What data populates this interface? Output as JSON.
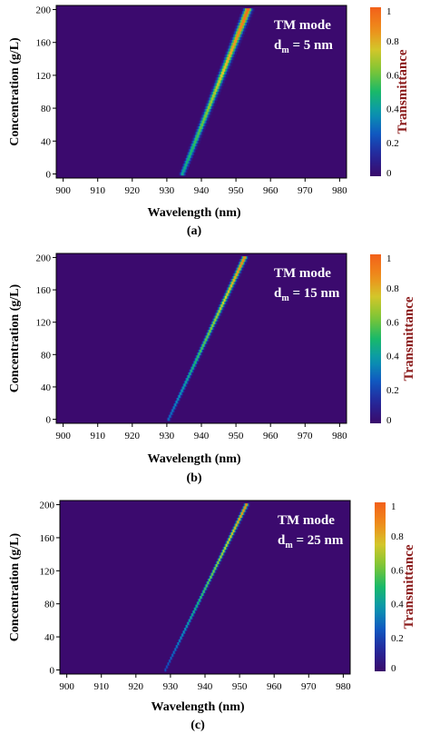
{
  "chart_data": [
    {
      "type": "heatmap",
      "panel_label": "(a)",
      "xlabel": "Wavelength (nm)",
      "ylabel": "Concentration (g/L)",
      "xlim": [
        898,
        982
      ],
      "ylim": [
        -5,
        205
      ],
      "xticks": [
        900,
        910,
        920,
        930,
        940,
        950,
        960,
        970,
        980
      ],
      "yticks": [
        0,
        40,
        80,
        120,
        160,
        200
      ],
      "annotation": {
        "line1": "TM mode",
        "line2_main": "d",
        "line2_sub": "m",
        "line2_rest": " = 5 nm"
      },
      "colorbar": {
        "label": "Transmittance",
        "ticks": [
          0,
          0.2,
          0.4,
          0.6,
          0.8,
          1
        ],
        "range": [
          0,
          1
        ]
      },
      "resonance": {
        "concentration": [
          0,
          200
        ],
        "wavelength": [
          934.5,
          953.5
        ],
        "width_nm": [
          0.9,
          1.3
        ],
        "peak": [
          0.45,
          1.0
        ]
      }
    },
    {
      "type": "heatmap",
      "panel_label": "(b)",
      "xlabel": "Wavelength (nm)",
      "ylabel": "Concentration (g/L)",
      "xlim": [
        898,
        982
      ],
      "ylim": [
        -5,
        205
      ],
      "xticks": [
        900,
        910,
        920,
        930,
        940,
        950,
        960,
        970,
        980
      ],
      "yticks": [
        0,
        40,
        80,
        120,
        160,
        200
      ],
      "annotation": {
        "line1": "TM mode",
        "line2_main": "d",
        "line2_sub": "m",
        "line2_rest": " = 15 nm"
      },
      "colorbar": {
        "label": "Transmittance",
        "ticks": [
          0,
          0.2,
          0.4,
          0.6,
          0.8,
          1
        ],
        "range": [
          0,
          1
        ]
      },
      "resonance": {
        "concentration": [
          0,
          200
        ],
        "wavelength": [
          930.5,
          952.5
        ],
        "width_nm": [
          0.55,
          0.9
        ],
        "peak": [
          0.3,
          0.95
        ]
      }
    },
    {
      "type": "heatmap",
      "panel_label": "(c)",
      "xlabel": "Wavelength (nm)",
      "ylabel": "Concentration (g/L)",
      "xlim": [
        898,
        982
      ],
      "ylim": [
        -5,
        205
      ],
      "xticks": [
        900,
        910,
        920,
        930,
        940,
        950,
        960,
        970,
        980
      ],
      "yticks": [
        0,
        40,
        80,
        120,
        160,
        200
      ],
      "annotation": {
        "line1": "TM mode",
        "line2_main": "d",
        "line2_sub": "m",
        "line2_rest": " = 25 nm"
      },
      "colorbar": {
        "label": "Transmittance",
        "ticks": [
          0,
          0.2,
          0.4,
          0.6,
          0.8,
          1
        ],
        "range": [
          0,
          1
        ]
      },
      "resonance": {
        "concentration": [
          0,
          200
        ],
        "wavelength": [
          928.5,
          952.0
        ],
        "width_nm": [
          0.4,
          0.7
        ],
        "peak": [
          0.25,
          0.95
        ]
      }
    }
  ],
  "colors": {
    "background_colormap_min": "#3b0a6e",
    "colorbar_label": "#8b1a1a",
    "colormap_stops": [
      "#3a0b6b",
      "#25269a",
      "#1058c0",
      "#0a96b0",
      "#19b96a",
      "#7ec634",
      "#d3c62a",
      "#f08a1a",
      "#f2601a"
    ]
  }
}
